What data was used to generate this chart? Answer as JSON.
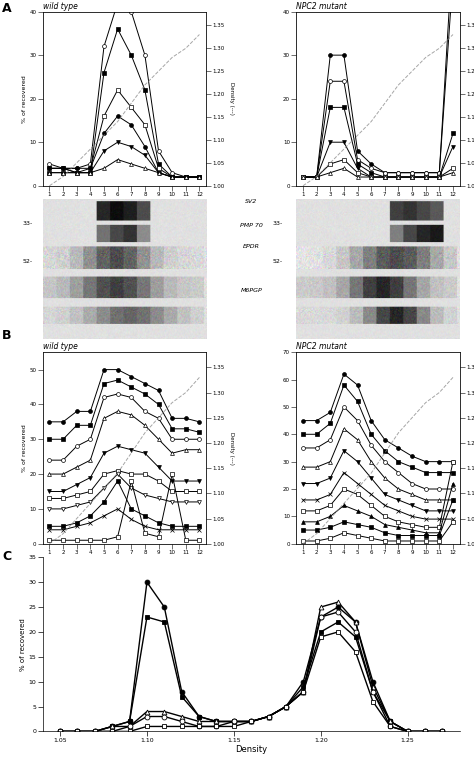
{
  "panel_A_wt": {
    "title": "wild type",
    "fractions": [
      1,
      2,
      3,
      4,
      5,
      6,
      7,
      8,
      9,
      10,
      11,
      12
    ],
    "density": [
      1.0,
      1.02,
      1.05,
      1.08,
      1.11,
      1.14,
      1.18,
      1.22,
      1.25,
      1.28,
      1.3,
      1.33
    ],
    "ylim": [
      0,
      40
    ],
    "yticks": [
      0,
      10,
      20,
      30,
      40
    ],
    "series": [
      {
        "marker": "o",
        "fill": "white",
        "data": [
          5,
          4,
          4,
          5,
          32,
          42,
          40,
          30,
          8,
          3,
          2,
          2
        ]
      },
      {
        "marker": "s",
        "fill": "black",
        "data": [
          3,
          3,
          3,
          3,
          26,
          36,
          30,
          22,
          5,
          2,
          2,
          2
        ]
      },
      {
        "marker": "s",
        "fill": "white",
        "data": [
          4,
          4,
          3,
          4,
          16,
          22,
          18,
          14,
          4,
          2,
          2,
          2
        ]
      },
      {
        "marker": "o",
        "fill": "black",
        "data": [
          4,
          4,
          4,
          4,
          12,
          16,
          14,
          9,
          3,
          2,
          2,
          2
        ]
      },
      {
        "marker": "v",
        "fill": "black",
        "data": [
          4,
          4,
          3,
          3,
          8,
          10,
          9,
          7,
          3,
          2,
          2,
          2
        ]
      },
      {
        "marker": "^",
        "fill": "white",
        "data": [
          3,
          3,
          3,
          3,
          4,
          6,
          5,
          4,
          3,
          2,
          2,
          2
        ]
      }
    ]
  },
  "panel_A_npc2": {
    "title": "NPC2 mutant",
    "fractions": [
      1,
      2,
      3,
      4,
      5,
      6,
      7,
      8,
      9,
      10,
      11,
      12
    ],
    "density": [
      1.0,
      1.02,
      1.05,
      1.08,
      1.11,
      1.14,
      1.18,
      1.22,
      1.25,
      1.28,
      1.3,
      1.33
    ],
    "ylim": [
      0,
      40
    ],
    "yticks": [
      0,
      10,
      20,
      30,
      40
    ],
    "series": [
      {
        "marker": "o",
        "fill": "black",
        "data": [
          2,
          2,
          30,
          30,
          8,
          5,
          3,
          3,
          3,
          3,
          3,
          55
        ]
      },
      {
        "marker": "o",
        "fill": "white",
        "data": [
          2,
          2,
          24,
          24,
          6,
          4,
          3,
          3,
          3,
          3,
          3,
          48
        ]
      },
      {
        "marker": "s",
        "fill": "black",
        "data": [
          2,
          2,
          18,
          18,
          5,
          3,
          2,
          2,
          2,
          2,
          2,
          12
        ]
      },
      {
        "marker": "v",
        "fill": "black",
        "data": [
          2,
          2,
          10,
          10,
          4,
          2,
          2,
          2,
          2,
          2,
          2,
          9
        ]
      },
      {
        "marker": "s",
        "fill": "white",
        "data": [
          2,
          2,
          5,
          6,
          3,
          2,
          2,
          2,
          2,
          2,
          2,
          4
        ]
      },
      {
        "marker": "^",
        "fill": "white",
        "data": [
          2,
          2,
          3,
          4,
          2,
          2,
          2,
          2,
          2,
          2,
          2,
          3
        ]
      }
    ]
  },
  "panel_B_wt": {
    "title": "wild type",
    "fractions": [
      1,
      2,
      3,
      4,
      5,
      6,
      7,
      8,
      9,
      10,
      11,
      12
    ],
    "density": [
      1.0,
      1.02,
      1.05,
      1.08,
      1.11,
      1.14,
      1.18,
      1.22,
      1.25,
      1.28,
      1.3,
      1.33
    ],
    "ylim": [
      0,
      55
    ],
    "yticks": [
      0,
      10,
      20,
      30,
      40,
      50
    ],
    "series": [
      {
        "marker": "o",
        "fill": "black",
        "data": [
          35,
          35,
          38,
          38,
          50,
          50,
          48,
          46,
          44,
          36,
          36,
          35
        ]
      },
      {
        "marker": "s",
        "fill": "black",
        "data": [
          30,
          30,
          34,
          34,
          46,
          47,
          45,
          43,
          40,
          33,
          33,
          32
        ]
      },
      {
        "marker": "o",
        "fill": "white",
        "data": [
          24,
          24,
          28,
          30,
          42,
          43,
          42,
          38,
          36,
          30,
          30,
          30
        ]
      },
      {
        "marker": "^",
        "fill": "white",
        "data": [
          20,
          20,
          22,
          24,
          36,
          38,
          37,
          34,
          30,
          26,
          27,
          27
        ]
      },
      {
        "marker": "v",
        "fill": "black",
        "data": [
          15,
          15,
          17,
          19,
          26,
          28,
          27,
          26,
          22,
          18,
          18,
          18
        ]
      },
      {
        "marker": "s",
        "fill": "white",
        "data": [
          13,
          13,
          14,
          15,
          20,
          21,
          20,
          20,
          18,
          15,
          15,
          15
        ]
      },
      {
        "marker": "v",
        "fill": "white",
        "data": [
          10,
          10,
          11,
          12,
          16,
          20,
          16,
          14,
          13,
          12,
          12,
          12
        ]
      },
      {
        "marker": "s",
        "fill": "black",
        "data": [
          5,
          5,
          6,
          8,
          12,
          18,
          10,
          8,
          6,
          5,
          5,
          5
        ]
      },
      {
        "marker": "x",
        "fill": "black",
        "data": [
          4,
          4,
          5,
          6,
          8,
          10,
          7,
          5,
          4,
          4,
          4,
          4
        ]
      },
      {
        "marker": "s",
        "fill": "white",
        "data": [
          1,
          1,
          1,
          1,
          1,
          2,
          18,
          3,
          2,
          20,
          1,
          1
        ]
      }
    ]
  },
  "panel_B_npc2": {
    "title": "NPC2 mutant",
    "fractions": [
      1,
      2,
      3,
      4,
      5,
      6,
      7,
      8,
      9,
      10,
      11,
      12
    ],
    "density": [
      1.0,
      1.02,
      1.05,
      1.08,
      1.11,
      1.14,
      1.18,
      1.22,
      1.25,
      1.28,
      1.3,
      1.33
    ],
    "ylim": [
      0,
      70
    ],
    "yticks": [
      0,
      10,
      20,
      30,
      40,
      50,
      60,
      70
    ],
    "series": [
      {
        "marker": "o",
        "fill": "black",
        "data": [
          45,
          45,
          48,
          62,
          58,
          45,
          38,
          35,
          32,
          30,
          30,
          30
        ]
      },
      {
        "marker": "s",
        "fill": "black",
        "data": [
          40,
          40,
          44,
          58,
          52,
          40,
          34,
          30,
          28,
          26,
          26,
          26
        ]
      },
      {
        "marker": "o",
        "fill": "white",
        "data": [
          35,
          35,
          38,
          50,
          45,
          36,
          30,
          26,
          22,
          20,
          20,
          20
        ]
      },
      {
        "marker": "^",
        "fill": "white",
        "data": [
          28,
          28,
          30,
          42,
          38,
          30,
          24,
          20,
          18,
          16,
          16,
          16
        ]
      },
      {
        "marker": "v",
        "fill": "black",
        "data": [
          22,
          22,
          24,
          34,
          30,
          24,
          18,
          16,
          14,
          12,
          12,
          12
        ]
      },
      {
        "marker": "x",
        "fill": "black",
        "data": [
          16,
          16,
          18,
          26,
          22,
          18,
          14,
          12,
          10,
          9,
          9,
          9
        ]
      },
      {
        "marker": "s",
        "fill": "white",
        "data": [
          12,
          12,
          14,
          20,
          18,
          14,
          10,
          8,
          7,
          6,
          6,
          30
        ]
      },
      {
        "marker": "^",
        "fill": "black",
        "data": [
          8,
          8,
          10,
          14,
          12,
          10,
          7,
          6,
          5,
          4,
          4,
          22
        ]
      },
      {
        "marker": "s",
        "fill": "black",
        "data": [
          5,
          5,
          6,
          8,
          7,
          6,
          4,
          3,
          3,
          3,
          3,
          16
        ]
      },
      {
        "marker": "s",
        "fill": "white",
        "data": [
          1,
          1,
          2,
          4,
          3,
          2,
          1,
          1,
          1,
          1,
          1,
          8
        ]
      }
    ]
  },
  "panel_C": {
    "xlabel": "Density",
    "ylabel": "% of recovered",
    "density_vals": [
      1.05,
      1.06,
      1.07,
      1.08,
      1.09,
      1.1,
      1.11,
      1.12,
      1.13,
      1.14,
      1.15,
      1.16,
      1.17,
      1.18,
      1.19,
      1.2,
      1.21,
      1.22,
      1.23,
      1.24,
      1.25,
      1.26,
      1.27
    ],
    "series": [
      {
        "marker": "o",
        "fill": "black",
        "data": [
          0,
          0,
          0,
          1,
          2,
          30,
          25,
          8,
          3,
          2,
          2,
          2,
          3,
          5,
          10,
          23,
          25,
          22,
          10,
          2,
          0,
          0,
          0
        ]
      },
      {
        "marker": "s",
        "fill": "black",
        "data": [
          0,
          0,
          0,
          1,
          2,
          23,
          22,
          7,
          3,
          2,
          2,
          2,
          3,
          5,
          9,
          20,
          22,
          19,
          8,
          2,
          0,
          0,
          0
        ]
      },
      {
        "marker": "^",
        "fill": "white",
        "data": [
          0,
          0,
          0,
          1,
          1,
          4,
          4,
          3,
          2,
          2,
          2,
          2,
          3,
          5,
          8,
          25,
          26,
          22,
          9,
          2,
          0,
          0,
          0
        ]
      },
      {
        "marker": "o",
        "fill": "white",
        "data": [
          0,
          0,
          0,
          0,
          1,
          3,
          3,
          2,
          1,
          1,
          2,
          2,
          3,
          5,
          8,
          23,
          24,
          20,
          8,
          1,
          0,
          0,
          0
        ]
      },
      {
        "marker": "s",
        "fill": "white",
        "data": [
          0,
          0,
          0,
          0,
          0,
          1,
          1,
          1,
          1,
          1,
          1,
          2,
          3,
          5,
          8,
          19,
          20,
          16,
          6,
          1,
          0,
          0,
          0
        ]
      }
    ],
    "xlim": [
      1.04,
      1.28
    ],
    "ylim": [
      0,
      35
    ],
    "yticks": [
      0,
      5,
      10,
      15,
      20,
      25,
      30,
      35
    ],
    "xticks": [
      1.05,
      1.1,
      1.15,
      1.2,
      1.25
    ],
    "xtick_labels": [
      "1.05",
      "1.10",
      "1.15",
      "1.20",
      "1.25"
    ]
  },
  "density_axis": {
    "ylim": [
      1.0,
      1.38
    ],
    "yticks": [
      1.0,
      1.05,
      1.1,
      1.15,
      1.2,
      1.25,
      1.3,
      1.35
    ],
    "ylabel": "Density (---)"
  }
}
